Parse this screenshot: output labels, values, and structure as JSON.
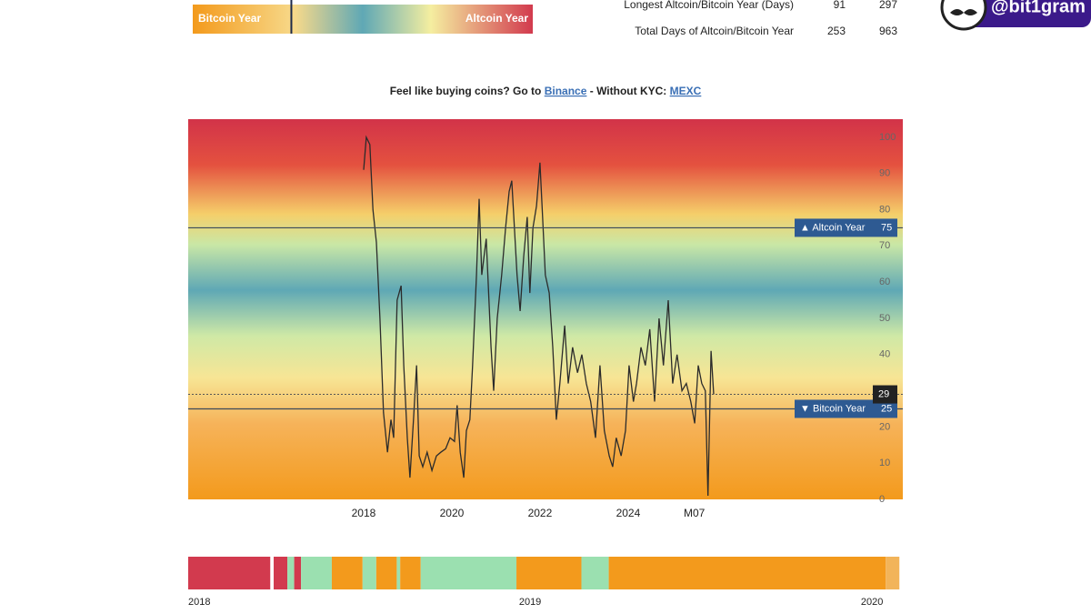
{
  "legend_bar": {
    "left": "Bitcoin Year",
    "right": "Altcoin Year"
  },
  "stats": {
    "rows": [
      [
        "Longest Altcoin/Bitcoin Year (Days)",
        "91",
        "297"
      ],
      [
        "Total Days of Altcoin/Bitcoin Year",
        "253",
        "963"
      ]
    ]
  },
  "badge": "@bit1gram",
  "promo": {
    "text": "Feel like buying coins? Go to",
    "link1": "Binance",
    "middle": "- Without KYC:",
    "link2": "MEXC"
  },
  "chart_data": [
    {
      "type": "line",
      "color": "#2b2b2b",
      "x": [
        2018.0,
        2018.06,
        2018.14,
        2018.21,
        2018.29,
        2018.37,
        2018.45,
        2018.54,
        2018.62,
        2018.68,
        2018.76,
        2018.85,
        2018.91,
        2018.99,
        2019.05,
        2019.13,
        2019.2,
        2019.26,
        2019.34,
        2019.44,
        2019.55,
        2019.65,
        2019.75,
        2019.86,
        2019.96,
        2020.06,
        2020.12,
        2020.19,
        2020.27,
        2020.33,
        2020.41,
        2020.47,
        2020.56,
        2020.62,
        2020.68,
        2020.78,
        2020.89,
        2020.95,
        2021.03,
        2021.13,
        2021.22,
        2021.3,
        2021.36,
        2021.42,
        2021.48,
        2021.55,
        2021.63,
        2021.71,
        2021.77,
        2021.84,
        2021.92,
        2022.0,
        2022.06,
        2022.12,
        2022.21,
        2022.29,
        2022.37,
        2022.45,
        2022.56,
        2022.64,
        2022.74,
        2022.85,
        2022.95,
        2023.05,
        2023.15,
        2023.26,
        2023.36,
        2023.46,
        2023.57,
        2023.65,
        2023.73,
        2023.84,
        2023.94,
        2024.02,
        2024.12,
        2024.19,
        2024.29,
        2024.39,
        2024.49,
        2024.6,
        2024.7,
        2024.8,
        2024.91,
        2025.01,
        2025.11,
        2025.22,
        2025.32,
        2025.42,
        2025.51,
        2025.59,
        2025.67,
        2025.75,
        2025.81,
        2025.88,
        2025.94
      ],
      "values": [
        91,
        100,
        98,
        80,
        71,
        50,
        24,
        13,
        22,
        17,
        55,
        59,
        37,
        17,
        6,
        22,
        37,
        12,
        9,
        13,
        8,
        12,
        13,
        14,
        17,
        16,
        26,
        13,
        6,
        19,
        22,
        37,
        62,
        83,
        62,
        72,
        42,
        30,
        50,
        62,
        75,
        85,
        88,
        75,
        62,
        52,
        67,
        78,
        57,
        75,
        81,
        93,
        78,
        62,
        57,
        42,
        22,
        32,
        48,
        32,
        42,
        35,
        40,
        32,
        27,
        17,
        37,
        19,
        12,
        9,
        17,
        12,
        19,
        37,
        27,
        32,
        42,
        37,
        47,
        27,
        50,
        37,
        55,
        32,
        40,
        30,
        32,
        27,
        21,
        37,
        32,
        30,
        1,
        41,
        29
      ],
      "xlim": [
        2014.02,
        2030.23
      ],
      "xticks": [
        2018,
        2020,
        2022,
        2024,
        {
          "value": 2025.5,
          "label": "M07"
        }
      ],
      "ylim": [
        0,
        105
      ],
      "yticks": [
        0,
        10,
        20,
        30,
        40,
        50,
        60,
        70,
        80,
        90,
        100
      ],
      "annotations": [
        {
          "label": "▲ Altcoin Year",
          "value": 75
        },
        {
          "label": "▼ Bitcoin Year",
          "value": 25
        }
      ]
    },
    {
      "type": "timeline",
      "xlim": [
        2018,
        2020.09
      ],
      "xticks": [
        2018,
        2019,
        2020
      ],
      "segments": [
        {
          "start": 2018.0,
          "end": 2018.24,
          "color": "#d23a4e"
        },
        {
          "start": 2018.25,
          "end": 2018.29,
          "color": "#d23a4e"
        },
        {
          "start": 2018.29,
          "end": 2018.31,
          "color": "#9be0b0"
        },
        {
          "start": 2018.31,
          "end": 2018.33,
          "color": "#d23a4e"
        },
        {
          "start": 2018.33,
          "end": 2018.42,
          "color": "#9be0b0"
        },
        {
          "start": 2018.42,
          "end": 2018.51,
          "color": "#f39a1c"
        },
        {
          "start": 2018.51,
          "end": 2018.55,
          "color": "#9be0b0"
        },
        {
          "start": 2018.55,
          "end": 2018.61,
          "color": "#f39a1c"
        },
        {
          "start": 2018.61,
          "end": 2018.62,
          "color": "#9be0b0"
        },
        {
          "start": 2018.62,
          "end": 2018.68,
          "color": "#f39a1c"
        },
        {
          "start": 2018.68,
          "end": 2018.96,
          "color": "#9be0b0"
        },
        {
          "start": 2018.96,
          "end": 2019.15,
          "color": "#f39a1c"
        },
        {
          "start": 2019.15,
          "end": 2019.23,
          "color": "#9be0b0"
        },
        {
          "start": 2019.23,
          "end": 2020.04,
          "color": "#f39a1c"
        },
        {
          "start": 2020.04,
          "end": 2020.08,
          "color": "#f2b45a"
        }
      ]
    }
  ]
}
